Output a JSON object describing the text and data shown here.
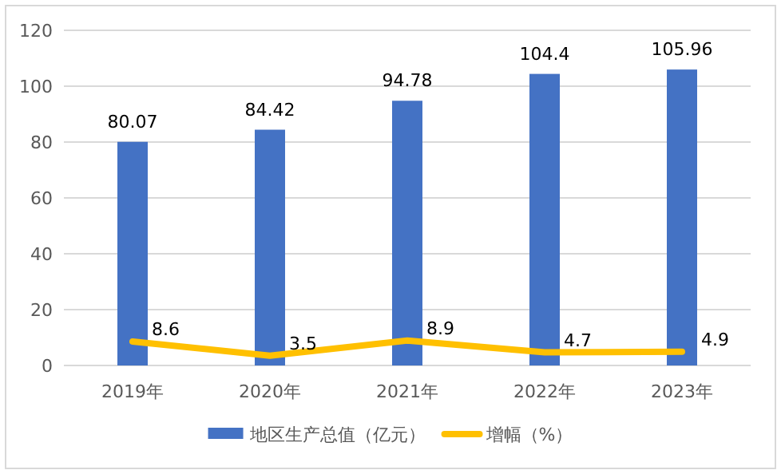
{
  "chart_data": {
    "type": "bar",
    "categories": [
      "2019年",
      "2020年",
      "2021年",
      "2022年",
      "2023年"
    ],
    "series": [
      {
        "name": "地区生产总值（亿元）",
        "color": "#4472c4",
        "values": [
          80.07,
          84.42,
          94.78,
          104.4,
          105.96
        ]
      },
      {
        "name": "增幅（%）",
        "type": "line",
        "color": "#ffc000",
        "values": [
          8.6,
          3.5,
          8.9,
          4.7,
          4.9
        ]
      }
    ],
    "ylim": [
      0,
      120
    ],
    "yticks": [
      0,
      20,
      40,
      60,
      80,
      100,
      120
    ],
    "grid": "y",
    "legend": "bottom",
    "data_labels": true,
    "marker": "none",
    "line_style": "solid"
  }
}
